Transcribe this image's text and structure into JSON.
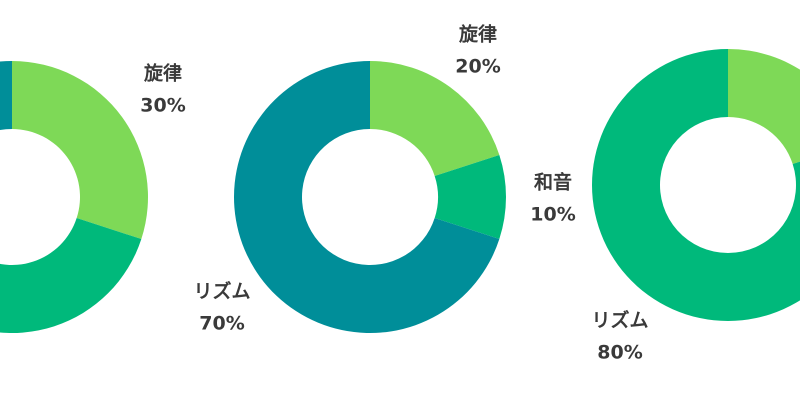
{
  "chart_data": [
    {
      "type": "pie",
      "categories": [
        "旋律",
        null,
        null
      ],
      "values": [
        30,
        60,
        10
      ],
      "value_labels": [
        "30%",
        null,
        null
      ],
      "colors": [
        "#7ed957",
        "#00b97b",
        "#008e99"
      ]
    },
    {
      "type": "pie",
      "categories": [
        "旋律",
        "和音",
        "リズム"
      ],
      "values": [
        20,
        10,
        70
      ],
      "value_labels": [
        "20%",
        "10%",
        "70%"
      ],
      "colors": [
        "#7ed957",
        "#00b97b",
        "#008e99"
      ]
    },
    {
      "type": "pie",
      "categories": [
        null,
        "リズム"
      ],
      "values": [
        20,
        80
      ],
      "value_labels": [
        null,
        "80%"
      ],
      "colors": [
        "#7ed957",
        "#00b97b"
      ]
    }
  ]
}
